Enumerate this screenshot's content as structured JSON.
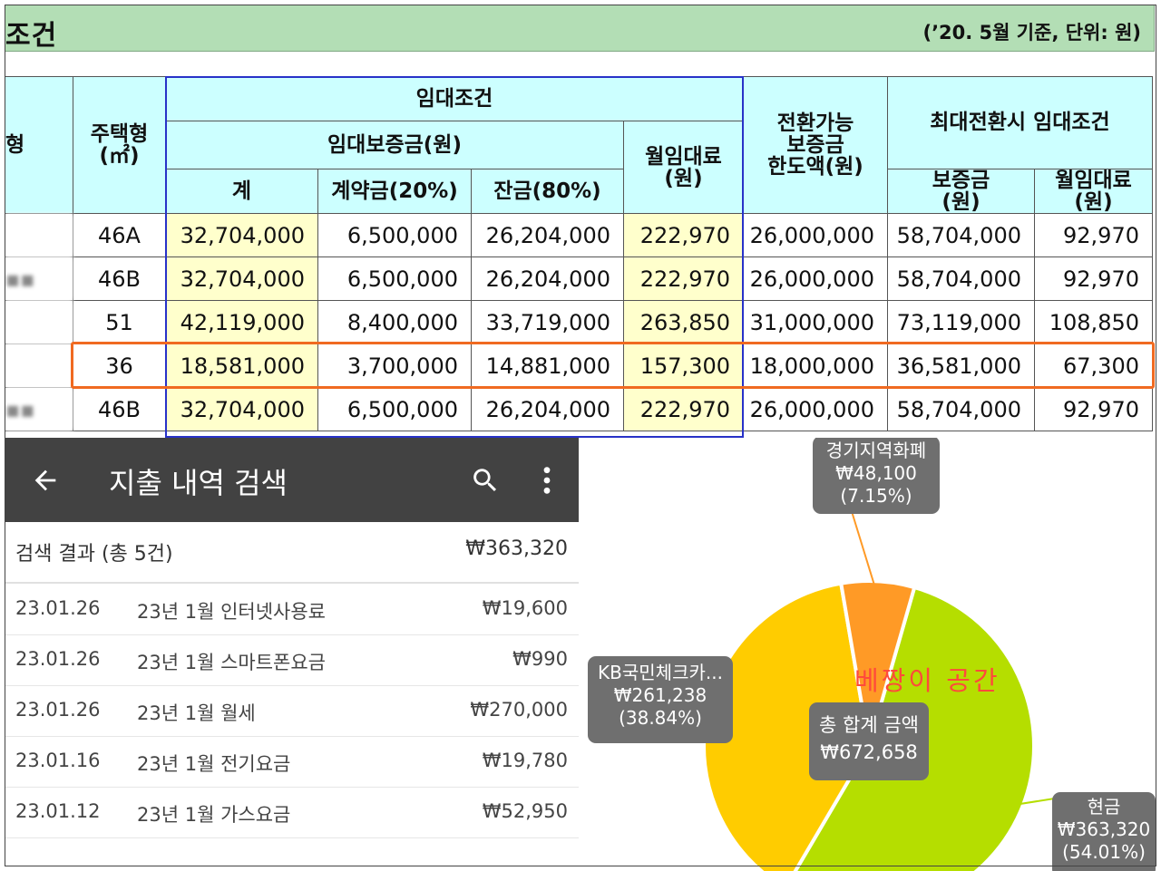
{
  "table_section": {
    "title": "조건",
    "note": "(’20. 5월 기준, 단위: 원)",
    "header": {
      "col1_fragment": "형",
      "house_type": "주택형\n(㎡)",
      "rent_conditions": "임대조건",
      "deposit_group": "임대보증금(원)",
      "total": "계",
      "contract": "계약금(20%)",
      "balance": "잔금(80%)",
      "monthly_rent": "월임대료\n(원)",
      "convertible": "전환가능\n보증금\n한도액(원)",
      "max_conversion": "최대전환시  임대조건",
      "max_deposit": "보증금\n(원)",
      "max_rent": "월임대료\n(원)"
    },
    "rows": [
      {
        "left": "",
        "type": "46A",
        "total": "32,704,000",
        "contract": "6,500,000",
        "balance": "26,204,000",
        "rent": "222,970",
        "convertible": "26,000,000",
        "max_deposit": "58,704,000",
        "max_rent": "92,970"
      },
      {
        "left": "▪▪",
        "type": "46B",
        "total": "32,704,000",
        "contract": "6,500,000",
        "balance": "26,204,000",
        "rent": "222,970",
        "convertible": "26,000,000",
        "max_deposit": "58,704,000",
        "max_rent": "92,970"
      },
      {
        "left": "",
        "type": "51",
        "total": "42,119,000",
        "contract": "8,400,000",
        "balance": "33,719,000",
        "rent": "263,850",
        "convertible": "31,000,000",
        "max_deposit": "73,119,000",
        "max_rent": "108,850"
      },
      {
        "left": "",
        "type": "36",
        "total": "18,581,000",
        "contract": "3,700,000",
        "balance": "14,881,000",
        "rent": "157,300",
        "convertible": "18,000,000",
        "max_deposit": "36,581,000",
        "max_rent": "67,300"
      },
      {
        "left": "▪▪",
        "type": "46B",
        "total": "32,704,000",
        "contract": "6,500,000",
        "balance": "26,204,000",
        "rent": "222,970",
        "convertible": "26,000,000",
        "max_deposit": "58,704,000",
        "max_rent": "92,970"
      }
    ],
    "highlighted_row_index": 3,
    "colors": {
      "title_bg": "#b3deb5",
      "header_bg": "#ccffff",
      "yellow_cell": "#ffffcc",
      "blue_outline": "#2832c8",
      "orange_outline": "#f06a21"
    }
  },
  "phone": {
    "appbar": {
      "title": "지출 내역 검색",
      "back_icon": "arrow-back-icon",
      "search_icon": "search-icon",
      "more_icon": "more-vert-icon",
      "bg_color": "#424242"
    },
    "summary": {
      "label": "검색 결과 (총 5건)",
      "total": "₩363,320"
    },
    "items": [
      {
        "date": "23.01.26",
        "desc": "23년 1월 인터넷사용료",
        "amount": "₩19,600"
      },
      {
        "date": "23.01.26",
        "desc": "23년 1월 스마트폰요금",
        "amount": "₩990"
      },
      {
        "date": "23.01.26",
        "desc": "23년 1월 월세",
        "amount": "₩270,000"
      },
      {
        "date": "23.01.16",
        "desc": "23년 1월 전기요금",
        "amount": "₩19,780"
      },
      {
        "date": "23.01.12",
        "desc": "23년 1월 가스요금",
        "amount": "₩52,950"
      }
    ]
  },
  "chart_data": {
    "type": "pie",
    "center_label": "총 합계 금액",
    "center_value": "₩672,658",
    "slices": [
      {
        "label": "현금",
        "value": 363320,
        "value_text": "₩363,320",
        "percent": 54.01,
        "percent_text": "(54.01%)",
        "color": "#b5de00"
      },
      {
        "label": "KB국민체크카...",
        "value": 261238,
        "value_text": "₩261,238",
        "percent": 38.84,
        "percent_text": "(38.84%)",
        "color": "#ffcc00"
      },
      {
        "label": "경기지역화폐",
        "value": 48100,
        "value_text": "₩48,100",
        "percent": 7.15,
        "percent_text": "(7.15%)",
        "color": "#ff9a26"
      }
    ],
    "watermark": "베짱이 공간"
  }
}
